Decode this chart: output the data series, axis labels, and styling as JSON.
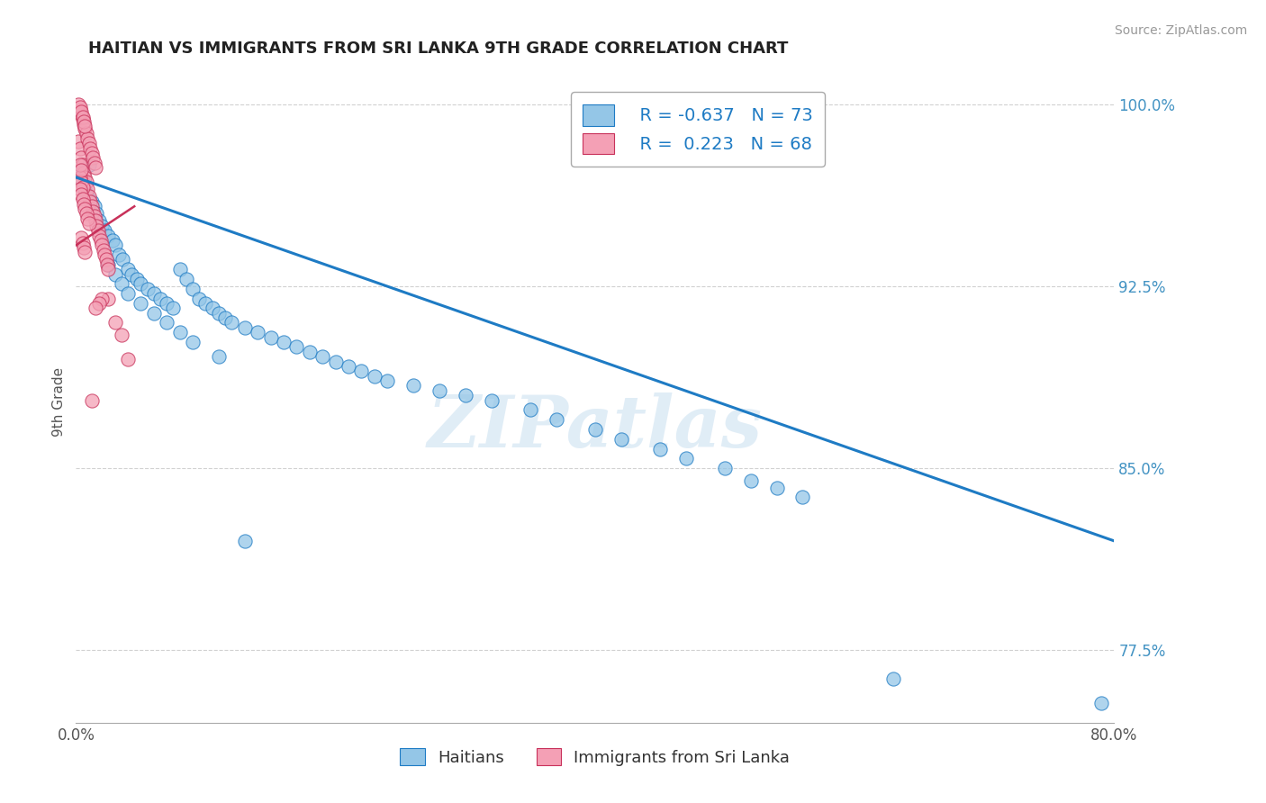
{
  "title": "HAITIAN VS IMMIGRANTS FROM SRI LANKA 9TH GRADE CORRELATION CHART",
  "source": "Source: ZipAtlas.com",
  "ylabel": "9th Grade",
  "xlim": [
    0.0,
    0.8
  ],
  "ylim": [
    0.745,
    1.01
  ],
  "xticks": [
    0.0,
    0.1,
    0.2,
    0.3,
    0.4,
    0.5,
    0.6,
    0.7,
    0.8
  ],
  "xticklabels": [
    "0.0%",
    "",
    "",
    "",
    "",
    "",
    "",
    "",
    "80.0%"
  ],
  "ytick_positions": [
    0.775,
    0.85,
    0.925,
    1.0
  ],
  "ytick_labels": [
    "77.5%",
    "85.0%",
    "92.5%",
    "100.0%"
  ],
  "blue_scatter_x": [
    0.003,
    0.005,
    0.007,
    0.009,
    0.01,
    0.012,
    0.014,
    0.016,
    0.018,
    0.02,
    0.022,
    0.025,
    0.028,
    0.03,
    0.033,
    0.036,
    0.04,
    0.043,
    0.047,
    0.05,
    0.055,
    0.06,
    0.065,
    0.07,
    0.075,
    0.08,
    0.085,
    0.09,
    0.095,
    0.1,
    0.105,
    0.11,
    0.115,
    0.12,
    0.13,
    0.14,
    0.15,
    0.16,
    0.17,
    0.18,
    0.19,
    0.2,
    0.21,
    0.22,
    0.23,
    0.24,
    0.26,
    0.28,
    0.3,
    0.32,
    0.35,
    0.37,
    0.4,
    0.42,
    0.45,
    0.47,
    0.5,
    0.52,
    0.54,
    0.56,
    0.63,
    0.79,
    0.025,
    0.03,
    0.035,
    0.04,
    0.05,
    0.06,
    0.07,
    0.08,
    0.09,
    0.11,
    0.13
  ],
  "blue_scatter_y": [
    0.972,
    0.968,
    0.965,
    0.962,
    0.975,
    0.96,
    0.958,
    0.955,
    0.952,
    0.95,
    0.948,
    0.946,
    0.944,
    0.942,
    0.938,
    0.936,
    0.932,
    0.93,
    0.928,
    0.926,
    0.924,
    0.922,
    0.92,
    0.918,
    0.916,
    0.932,
    0.928,
    0.924,
    0.92,
    0.918,
    0.916,
    0.914,
    0.912,
    0.91,
    0.908,
    0.906,
    0.904,
    0.902,
    0.9,
    0.898,
    0.896,
    0.894,
    0.892,
    0.89,
    0.888,
    0.886,
    0.884,
    0.882,
    0.88,
    0.878,
    0.874,
    0.87,
    0.866,
    0.862,
    0.858,
    0.854,
    0.85,
    0.845,
    0.842,
    0.838,
    0.763,
    0.753,
    0.934,
    0.93,
    0.926,
    0.922,
    0.918,
    0.914,
    0.91,
    0.906,
    0.902,
    0.896,
    0.82
  ],
  "pink_scatter_x": [
    0.002,
    0.003,
    0.004,
    0.005,
    0.006,
    0.007,
    0.008,
    0.009,
    0.01,
    0.011,
    0.012,
    0.013,
    0.014,
    0.015,
    0.016,
    0.017,
    0.018,
    0.019,
    0.02,
    0.021,
    0.022,
    0.023,
    0.024,
    0.025,
    0.003,
    0.004,
    0.005,
    0.006,
    0.007,
    0.008,
    0.009,
    0.01,
    0.011,
    0.012,
    0.013,
    0.014,
    0.015,
    0.002,
    0.003,
    0.004,
    0.005,
    0.006,
    0.007,
    0.003,
    0.004,
    0.005,
    0.003,
    0.004,
    0.003,
    0.004,
    0.005,
    0.006,
    0.007,
    0.008,
    0.009,
    0.01,
    0.004,
    0.005,
    0.006,
    0.007,
    0.03,
    0.035,
    0.04,
    0.025,
    0.02,
    0.018,
    0.015,
    0.012
  ],
  "pink_scatter_y": [
    0.985,
    0.982,
    0.978,
    0.975,
    0.972,
    0.97,
    0.968,
    0.965,
    0.962,
    0.96,
    0.958,
    0.956,
    0.954,
    0.952,
    0.95,
    0.948,
    0.946,
    0.944,
    0.942,
    0.94,
    0.938,
    0.936,
    0.934,
    0.932,
    0.998,
    0.996,
    0.994,
    0.992,
    0.99,
    0.988,
    0.986,
    0.984,
    0.982,
    0.98,
    0.978,
    0.976,
    0.974,
    1.0,
    0.999,
    0.997,
    0.995,
    0.993,
    0.991,
    0.97,
    0.968,
    0.966,
    0.975,
    0.973,
    0.965,
    0.963,
    0.961,
    0.959,
    0.957,
    0.955,
    0.953,
    0.951,
    0.945,
    0.943,
    0.941,
    0.939,
    0.91,
    0.905,
    0.895,
    0.92,
    0.92,
    0.918,
    0.916,
    0.878
  ],
  "blue_line_x": [
    0.0,
    0.8
  ],
  "blue_line_y": [
    0.97,
    0.82
  ],
  "pink_line_x": [
    0.0,
    0.045
  ],
  "pink_line_y": [
    0.942,
    0.958
  ],
  "blue_color": "#94C6E7",
  "pink_color": "#F4A0B5",
  "blue_line_color": "#1E7BC4",
  "pink_line_color": "#C8315A",
  "R_blue": -0.637,
  "N_blue": 73,
  "R_pink": 0.223,
  "N_pink": 68,
  "legend_label_blue": "Haitians",
  "legend_label_pink": "Immigrants from Sri Lanka",
  "watermark": "ZIPatlas",
  "background_color": "#ffffff",
  "grid_color": "#cccccc",
  "title_color": "#222222",
  "axis_label_color": "#555555",
  "ytick_color": "#4393C3",
  "source_text": "Source: ZipAtlas.com"
}
